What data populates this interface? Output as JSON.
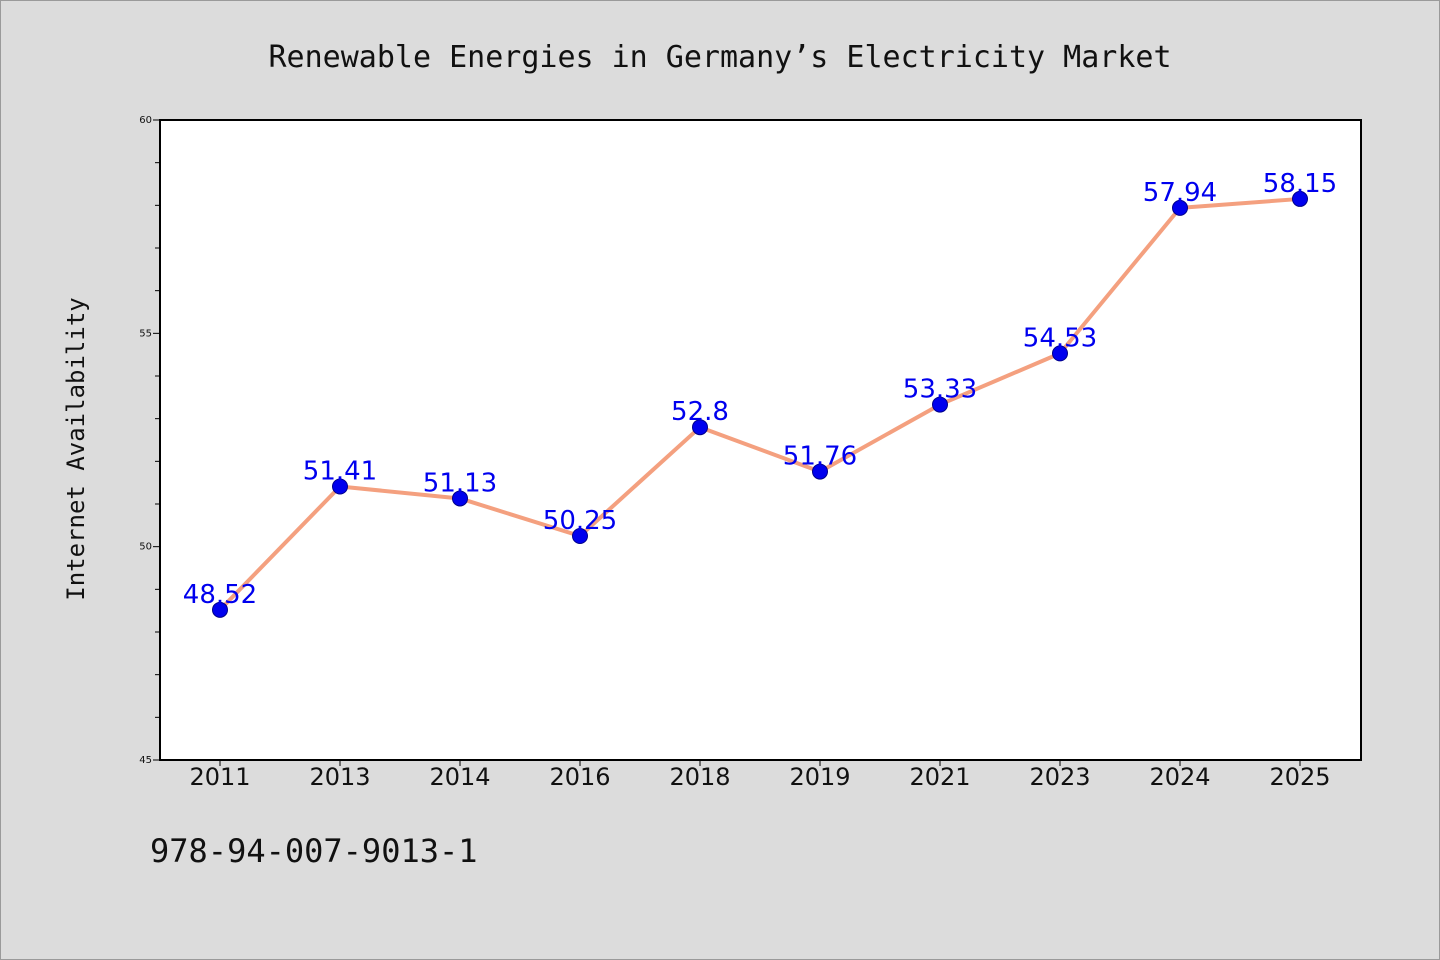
{
  "chart_data": {
    "type": "line",
    "title": "Renewable Energies in Germany’s Electricity Market",
    "xlabel": "",
    "ylabel": "Internet Availability",
    "categories": [
      "2011",
      "2013",
      "2014",
      "2016",
      "2018",
      "2019",
      "2021",
      "2023",
      "2024",
      "2025"
    ],
    "series": [
      {
        "values": [
          48.52,
          51.41,
          51.13,
          50.25,
          52.8,
          51.76,
          53.33,
          54.53,
          57.94,
          58.15
        ],
        "labels": [
          "48.52",
          "51.41",
          "51.13",
          "50.25",
          "52.8",
          "51.76",
          "53.33",
          "54.53",
          "57.94",
          "58.15"
        ]
      }
    ],
    "ylim": [
      45,
      60
    ],
    "yticks": [
      45,
      50,
      55,
      60
    ],
    "grid": false,
    "legend": "none"
  },
  "footer_text": "978-94-007-9013-1",
  "colors": {
    "background": "#dcdcdc",
    "plot_background": "#ffffff",
    "line": "#f4a07f",
    "marker": "#0000ee",
    "label": "#0000ee",
    "axes": "#000000"
  }
}
